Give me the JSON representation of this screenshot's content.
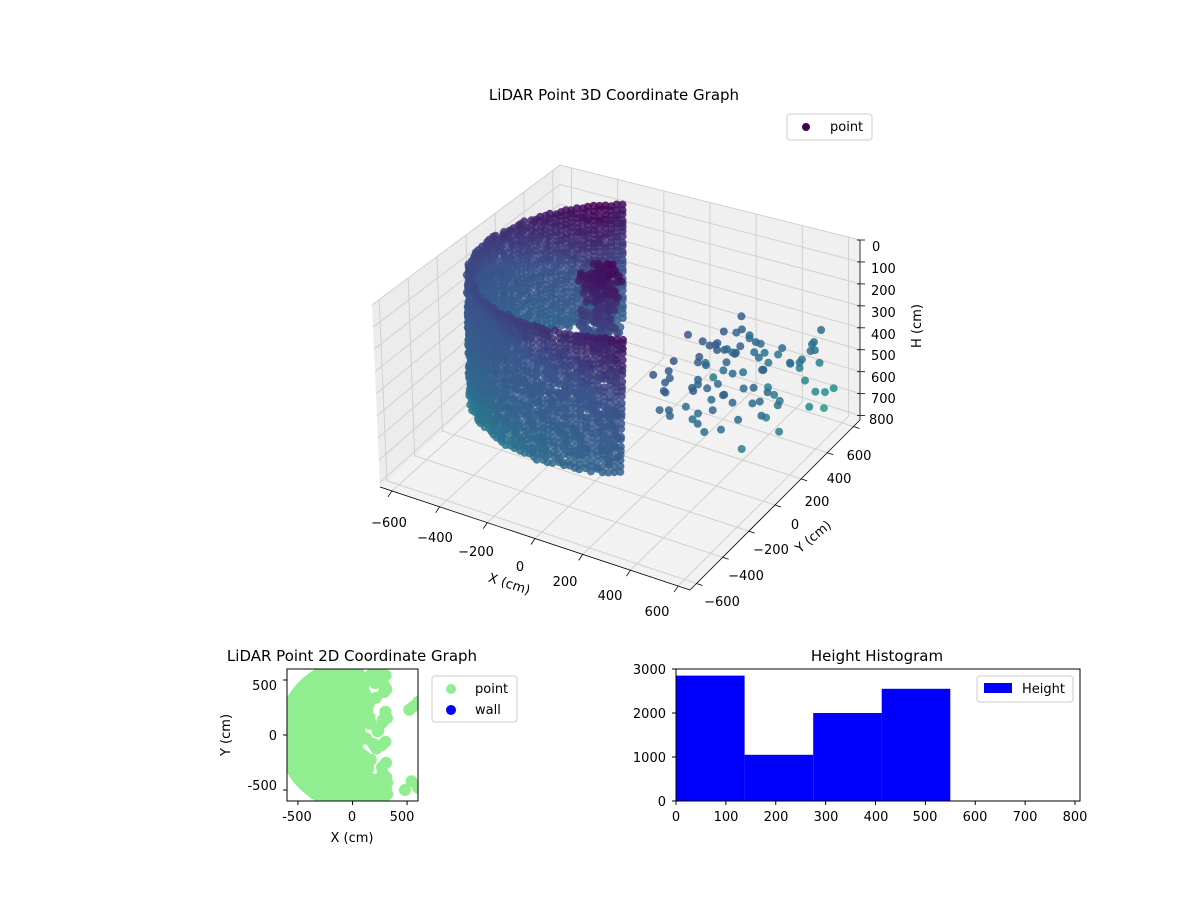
{
  "colors": {
    "viridis_dark": "#440154",
    "viridis_mid": "#31688e",
    "viridis_teal": "#35b779",
    "viridis_yellow": "#c2df23",
    "point_2d": "#90ee90",
    "wall_2d": "#0000ff",
    "hist_bar": "#0000ff"
  },
  "chart_data": [
    {
      "type": "scatter",
      "title": "LiDAR Point 3D Coordinate Graph",
      "xlabel": "X (cm)",
      "ylabel": "Y (cm)",
      "zlabel": "H (cm)",
      "x_ticks": [
        "−600",
        "−400",
        "−200",
        "0",
        "200",
        "400",
        "600"
      ],
      "y_ticks": [
        "−600",
        "−400",
        "−200",
        "0",
        "200",
        "400",
        "600"
      ],
      "z_ticks": [
        "0",
        "100",
        "200",
        "300",
        "400",
        "500",
        "600",
        "700",
        "800"
      ],
      "xlim": [
        -650,
        650
      ],
      "ylim": [
        -650,
        650
      ],
      "zlim": [
        0,
        820
      ],
      "z_inverted": true,
      "grid": true,
      "colormap": "viridis",
      "legend": {
        "placement": "top-right",
        "entries": [
          {
            "name": "point",
            "color": "#440154"
          }
        ]
      },
      "description_of_data": "ring of wall points at radius ~550 cm spanning angles 120°–300°, heights 0–550 cm; a dense cluster near x≈-100, y≈0; sparse scattered points on the +x side",
      "ring": {
        "radius": 550,
        "angle_start_deg": 120,
        "angle_end_deg": 300,
        "h_min": 0,
        "h_max": 550
      },
      "cluster": {
        "x": -100,
        "y": 0,
        "h_min": 20,
        "h_max": 320
      },
      "outliers": [
        {
          "x": 200,
          "y": 600,
          "h": 560
        },
        {
          "x": 550,
          "y": 550,
          "h": 740
        },
        {
          "x": 620,
          "y": 500,
          "h": 600
        },
        {
          "x": 450,
          "y": 100,
          "h": 700
        },
        {
          "x": 150,
          "y": 300,
          "h": 620
        },
        {
          "x": 100,
          "y": 100,
          "h": 640
        }
      ]
    },
    {
      "type": "scatter",
      "title": "LiDAR Point 2D Coordinate Graph",
      "xlabel": "X (cm)",
      "ylabel": "Y (cm)",
      "x_ticks": [
        -500,
        0,
        500
      ],
      "y_ticks": [
        -500,
        0,
        500
      ],
      "xlim": [
        -600,
        600
      ],
      "ylim": [
        -600,
        600
      ],
      "series": [
        {
          "name": "point",
          "color": "#90ee90"
        },
        {
          "name": "wall",
          "color": "#0000ff"
        }
      ],
      "legend": {
        "placement": "outside-right"
      }
    },
    {
      "type": "bar",
      "title": "Height Histogram",
      "xlabel": "",
      "ylabel": "",
      "series": [
        {
          "name": "Height",
          "color": "#0000ff"
        }
      ],
      "bins": [
        {
          "x0": 0,
          "x1": 137.5,
          "count": 2850
        },
        {
          "x0": 137.5,
          "x1": 275,
          "count": 1050
        },
        {
          "x0": 275,
          "x1": 412.5,
          "count": 2000
        },
        {
          "x0": 412.5,
          "x1": 550,
          "count": 2550
        }
      ],
      "x_ticks": [
        0,
        100,
        200,
        300,
        400,
        500,
        600,
        700,
        800
      ],
      "y_ticks": [
        0,
        1000,
        2000,
        3000
      ],
      "xlim": [
        0,
        810
      ],
      "ylim": [
        0,
        3000
      ],
      "legend": {
        "placement": "top-right"
      }
    }
  ]
}
